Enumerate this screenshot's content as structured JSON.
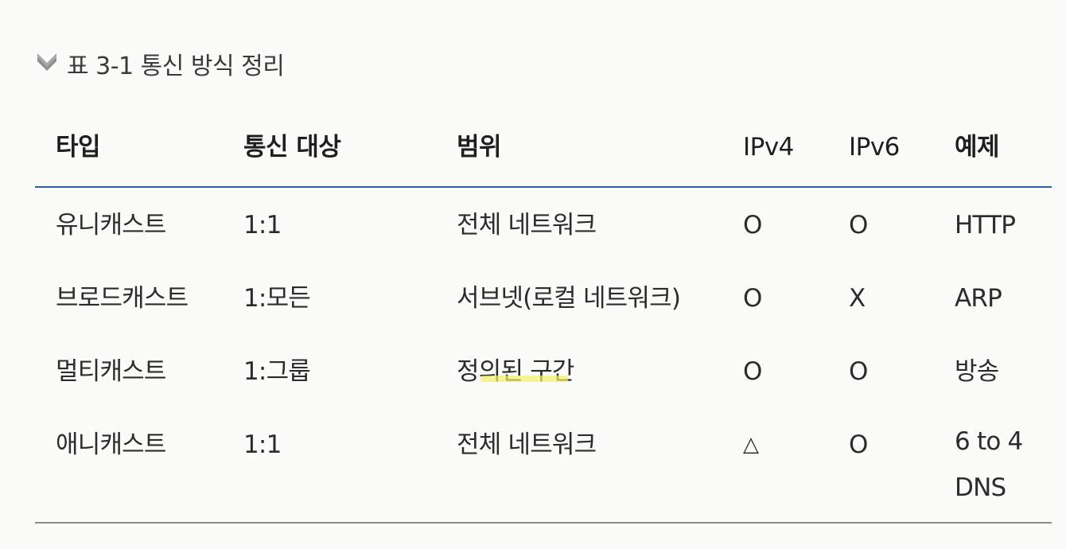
{
  "caption": {
    "icon": "chevron-down-icon",
    "text": "표 3-1 통신 방식 정리"
  },
  "table": {
    "headers": {
      "type": "타입",
      "target": "통신 대상",
      "range": "범위",
      "ipv4": "IPv4",
      "ipv6": "IPv6",
      "example": "예제"
    },
    "rows": [
      {
        "type": "유니캐스트",
        "target": "1:1",
        "range": "전체 네트워크",
        "ipv4": "O",
        "ipv6": "O",
        "example": "HTTP"
      },
      {
        "type": "브로드캐스트",
        "target": "1:모든",
        "range": "서브넷(로컬 네트워크)",
        "ipv4": "O",
        "ipv6": "X",
        "example": "ARP"
      },
      {
        "type": "멀티캐스트",
        "target": "1:그룹",
        "range": "정의된 구간",
        "ipv4": "O",
        "ipv6": "O",
        "example": "방송"
      },
      {
        "type": "애니캐스트",
        "target": "1:1",
        "range": "전체 네트워크",
        "ipv4": "△",
        "ipv6": "O",
        "example": "6 to 4\nDNS"
      }
    ]
  },
  "colors": {
    "header_rule": "#2c5fa0",
    "bottom_rule": "#8a8a8a",
    "highlight": "#f2ef6a"
  }
}
